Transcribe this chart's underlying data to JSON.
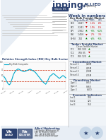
{
  "bg_color": "#ffffff",
  "accent_color": "#2b4170",
  "light_blue": "#d6e4f0",
  "header_bg": "#2b4170",
  "right_panel_bg": "#f0f4f8",
  "chart_line_color": "#00aacc",
  "chart_ref_color": "#cc2200",
  "overbought": 70,
  "oversold": 30,
  "rsi_data": [
    48,
    45,
    42,
    38,
    33,
    28,
    24,
    20,
    18,
    16,
    18,
    22,
    28,
    35,
    42,
    50,
    56,
    60,
    64,
    67,
    70,
    72,
    74,
    75,
    74,
    73,
    72,
    70,
    69,
    68,
    67,
    66,
    65,
    65,
    66,
    67,
    68,
    69,
    70,
    71,
    72,
    73,
    74,
    73,
    72,
    70,
    69,
    68,
    67,
    65,
    63,
    61,
    58,
    55,
    52,
    49,
    46,
    43,
    40,
    37,
    34,
    31,
    28,
    26,
    24,
    22,
    20,
    18,
    22,
    26,
    30,
    35,
    40,
    45,
    48,
    50,
    52,
    54,
    56,
    58,
    57,
    55,
    53,
    51,
    49,
    47,
    45,
    43,
    41,
    40,
    42,
    44,
    46,
    48,
    50,
    50,
    48,
    46,
    44,
    42
  ],
  "text_color": "#333333",
  "gray_text": "#666666",
  "red_color": "#cc0000",
  "green_color": "#007700",
  "med_gray": "#999999",
  "dark_gray": "#555555",
  "chart_title": "Relative Strength Index (RSI) Dry Bulk Sector",
  "week_label": "Week 05",
  "title_text": "ipping",
  "win_title": "Week in numbers",
  "dry_bulk_sub": "Dry Bulk Freight Market",
  "footer_text1": "We",
  "footer_text2": "LEAD",
  "footer_text3": "We",
  "footer_text4": "DELIVER"
}
